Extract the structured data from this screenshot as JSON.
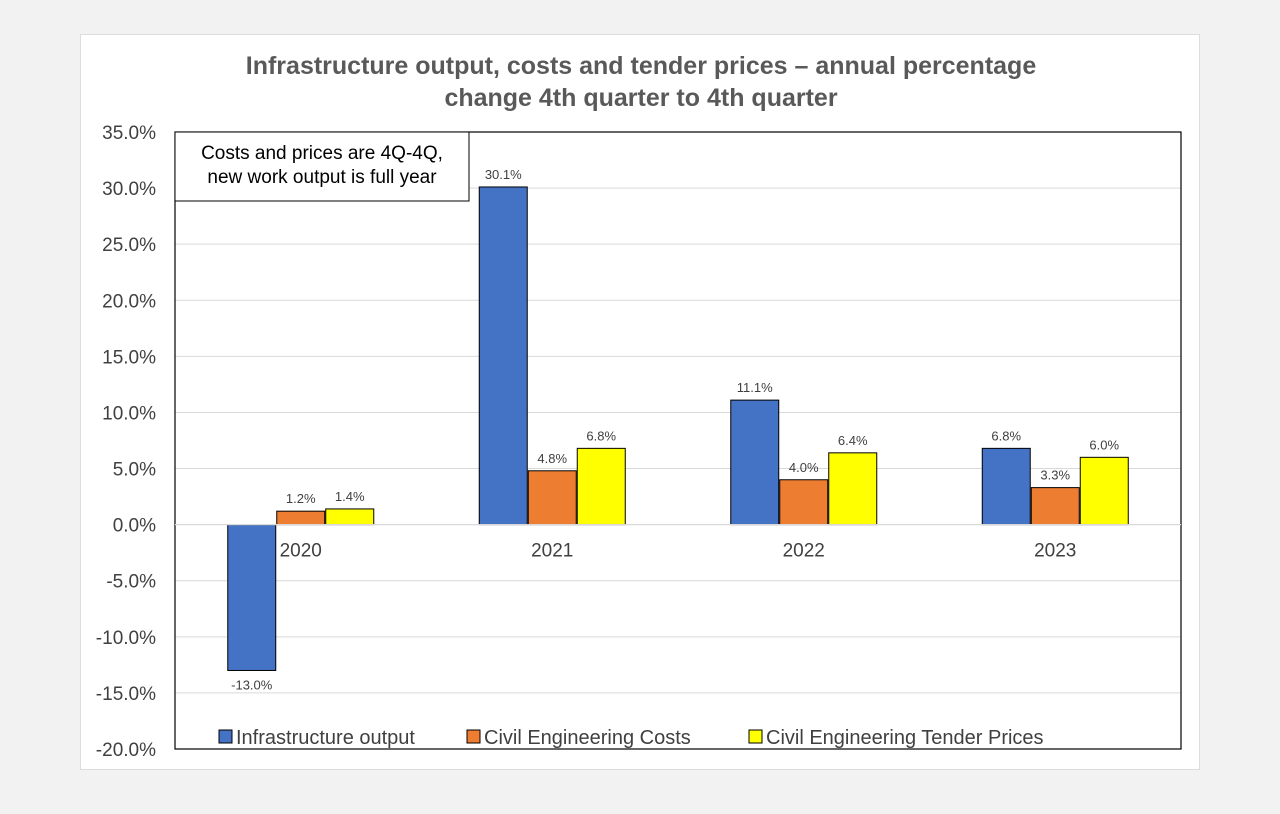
{
  "chart_data": {
    "type": "bar",
    "title_lines": [
      "Infrastructure output, costs and tender prices – annual percentage",
      "change 4th quarter to 4th quarter"
    ],
    "categories": [
      "2020",
      "2021",
      "2022",
      "2023"
    ],
    "series": [
      {
        "name": "Infrastructure output",
        "color": "#4472c4",
        "values": [
          -13.0,
          30.1,
          11.1,
          6.8
        ],
        "labels": [
          "-13.0%",
          "30.1%",
          "11.1%",
          "6.8%"
        ]
      },
      {
        "name": "Civil Engineering Costs",
        "color": "#ed7d31",
        "values": [
          1.2,
          4.8,
          4.0,
          3.3
        ],
        "labels": [
          "1.2%",
          "4.8%",
          "4.0%",
          "3.3%"
        ]
      },
      {
        "name": "Civil Engineering Tender Prices",
        "color": "#ffff00",
        "values": [
          1.4,
          6.8,
          6.4,
          6.0
        ],
        "labels": [
          "1.4%",
          "6.8%",
          "6.4%",
          "6.0%"
        ]
      }
    ],
    "ylim": [
      -20,
      35
    ],
    "ytick_values": [
      35,
      30,
      25,
      20,
      15,
      10,
      5,
      0,
      -5,
      -10,
      -15,
      -20
    ],
    "ytick_labels": [
      "35.0%",
      "30.0%",
      "25.0%",
      "20.0%",
      "15.0%",
      "10.0%",
      "5.0%",
      "0.0%",
      "-5.0%",
      "-10.0%",
      "-15.0%",
      "-20.0%"
    ],
    "grid": true,
    "legend_position": "bottom",
    "annotation_lines": [
      "Costs and prices are 4Q-4Q,",
      "new work output is full year"
    ]
  }
}
